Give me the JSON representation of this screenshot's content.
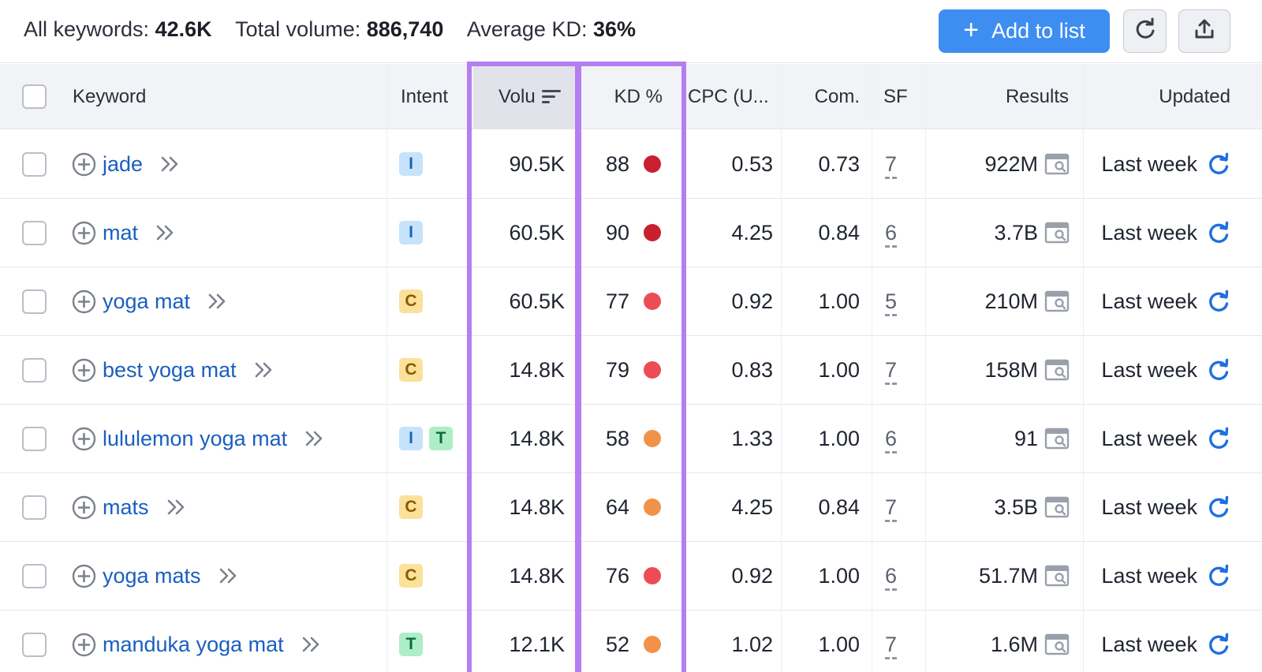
{
  "summary": {
    "all_keywords_label": "All keywords:",
    "all_keywords_value": "42.6K",
    "total_volume_label": "Total volume:",
    "total_volume_value": "886,740",
    "avg_kd_label": "Average KD:",
    "avg_kd_value": "36%"
  },
  "toolbar": {
    "add_to_list_label": "Add to list",
    "add_icon": "plus-icon",
    "refresh_icon": "refresh-icon",
    "export_icon": "export-icon"
  },
  "columns": {
    "keyword": "Keyword",
    "intent": "Intent",
    "volume": "Volu",
    "kd": "KD %",
    "cpc": "CPC (U...",
    "com": "Com.",
    "sf": "SF",
    "results": "Results",
    "updated": "Updated"
  },
  "colors": {
    "accent": "#3d8ef0",
    "link": "#1a5fbf",
    "highlight": "#b57ef0",
    "kd_very_hard": "#c8202f",
    "kd_hard": "#ec4c55",
    "kd_difficult": "#f29248"
  },
  "rows": [
    {
      "keyword": "jade",
      "intent": [
        "I"
      ],
      "volume": "90.5K",
      "kd": "88",
      "kd_color": "#c8202f",
      "cpc": "0.53",
      "com": "0.73",
      "sf": "7",
      "results": "922M",
      "updated": "Last week"
    },
    {
      "keyword": "mat",
      "intent": [
        "I"
      ],
      "volume": "60.5K",
      "kd": "90",
      "kd_color": "#c8202f",
      "cpc": "4.25",
      "com": "0.84",
      "sf": "6",
      "results": "3.7B",
      "updated": "Last week"
    },
    {
      "keyword": "yoga mat",
      "intent": [
        "C"
      ],
      "volume": "60.5K",
      "kd": "77",
      "kd_color": "#ec4c55",
      "cpc": "0.92",
      "com": "1.00",
      "sf": "5",
      "results": "210M",
      "updated": "Last week"
    },
    {
      "keyword": "best yoga mat",
      "intent": [
        "C"
      ],
      "volume": "14.8K",
      "kd": "79",
      "kd_color": "#ec4c55",
      "cpc": "0.83",
      "com": "1.00",
      "sf": "7",
      "results": "158M",
      "updated": "Last week"
    },
    {
      "keyword": "lululemon yoga mat",
      "intent": [
        "I",
        "T"
      ],
      "volume": "14.8K",
      "kd": "58",
      "kd_color": "#f29248",
      "cpc": "1.33",
      "com": "1.00",
      "sf": "6",
      "results": "91",
      "updated": "Last week"
    },
    {
      "keyword": "mats",
      "intent": [
        "C"
      ],
      "volume": "14.8K",
      "kd": "64",
      "kd_color": "#f29248",
      "cpc": "4.25",
      "com": "0.84",
      "sf": "7",
      "results": "3.5B",
      "updated": "Last week"
    },
    {
      "keyword": "yoga mats",
      "intent": [
        "C"
      ],
      "volume": "14.8K",
      "kd": "76",
      "kd_color": "#ec4c55",
      "cpc": "0.92",
      "com": "1.00",
      "sf": "6",
      "results": "51.7M",
      "updated": "Last week"
    },
    {
      "keyword": "manduka yoga mat",
      "intent": [
        "T"
      ],
      "volume": "12.1K",
      "kd": "52",
      "kd_color": "#f29248",
      "cpc": "1.02",
      "com": "1.00",
      "sf": "7",
      "results": "1.6M",
      "updated": "Last week"
    }
  ]
}
